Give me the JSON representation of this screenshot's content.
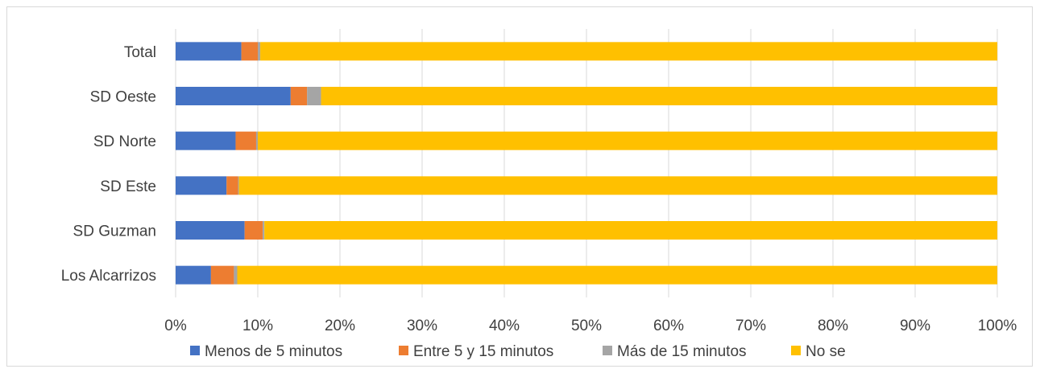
{
  "chart_data": {
    "type": "bar",
    "orientation": "horizontal",
    "stacked": "percent",
    "categories": [
      "Total",
      "SD Oeste",
      "SD Norte",
      "SD Este",
      "SD Guzman",
      "Los Alcarrizos"
    ],
    "series": [
      {
        "name": "Menos de 5 minutos",
        "color": "#4472C4",
        "values": [
          8,
          14,
          7.3,
          6.2,
          8.4,
          4.3
        ]
      },
      {
        "name": "Entre 5 y 15 minutos",
        "color": "#ED7D31",
        "values": [
          2,
          2,
          2.5,
          1.4,
          2.2,
          2.8
        ]
      },
      {
        "name": "Más de 15 minutos",
        "color": "#A5A5A5",
        "values": [
          0.3,
          1.7,
          0.2,
          0.1,
          0.2,
          0.4
        ]
      },
      {
        "name": "No se",
        "color": "#FFC000",
        "values": [
          89.7,
          82.3,
          90,
          92.3,
          89.2,
          92.5
        ]
      }
    ],
    "xlim": [
      0,
      100
    ],
    "xticks": [
      "0%",
      "10%",
      "20%",
      "30%",
      "40%",
      "50%",
      "60%",
      "70%",
      "80%",
      "90%",
      "100%"
    ],
    "grid": true,
    "legend_position": "bottom",
    "title": "",
    "xlabel": "",
    "ylabel": ""
  }
}
